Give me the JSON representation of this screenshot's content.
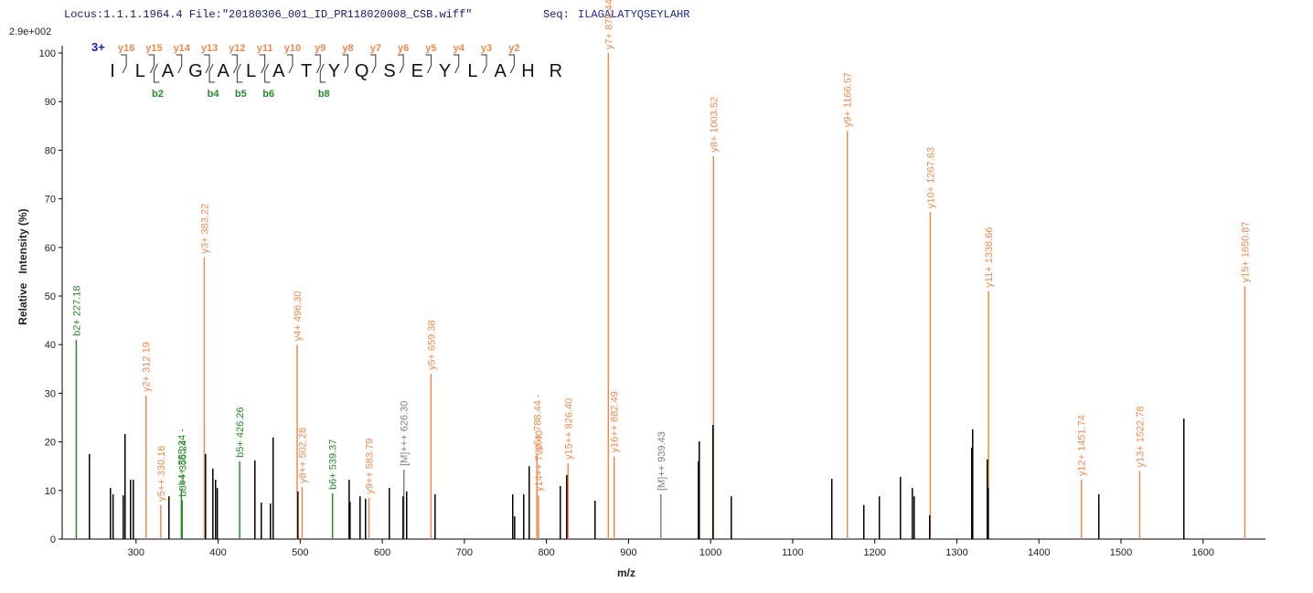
{
  "header": {
    "locus": "Locus:1.1.1.1964.4 File:\"20180306_001_ID_PR118020008_CSB.wiff\"",
    "seq_label": "Seq:",
    "seq": "ILAGALATYQSEYLAHR"
  },
  "chart_data": {
    "type": "spectrum",
    "scale_label": "2.9e+002",
    "x_label": "m/z",
    "y_label": "Relative   Intensity (%)",
    "xlim": [
      210,
      1676
    ],
    "xticks": [
      300,
      400,
      500,
      600,
      700,
      800,
      900,
      1000,
      1100,
      1200,
      1300,
      1400,
      1500,
      1600
    ],
    "ylim": [
      0,
      100
    ],
    "yticks": [
      0,
      10,
      20,
      30,
      40,
      50,
      60,
      70,
      80,
      90,
      100
    ],
    "x": [
      227.18,
      312.19,
      330.16,
      355.24,
      356.24,
      383.22,
      426.26,
      496.3,
      502.28,
      539.37,
      583.79,
      626.3,
      659.38,
      788.44,
      790.4,
      826.4,
      875.44,
      882.49,
      939.43,
      1003.52,
      1166.57,
      1267.63,
      1338.66,
      1451.74,
      1522.78,
      1650.87,
      243.2,
      268.8,
      272,
      284.4,
      286.6,
      293.3,
      296.7,
      340.1,
      384.7,
      393.6,
      396.9,
      399,
      444.8,
      452.6,
      463.7,
      467,
      497.2,
      559.6,
      560.7,
      572.9,
      579.6,
      608.6,
      625.3,
      629.7,
      664.3,
      758.9,
      761.2,
      772.3,
      779,
      816.9,
      824.7,
      859.2,
      985.1,
      986.2,
      1002.9,
      1025.2,
      1147.7,
      1186.7,
      1205.6,
      1231.3,
      1245.8,
      1248,
      1266.9,
      1318.2,
      1319.3,
      1337.1,
      1338.2,
      1473,
      1576.6
    ],
    "values": [
      41,
      29.5,
      7,
      10.3,
      8,
      58,
      16,
      40,
      10.7,
      9.4,
      8.5,
      14.3,
      34,
      17.5,
      9,
      15.6,
      100,
      17,
      9.2,
      78.8,
      84,
      67.3,
      51,
      12.2,
      14,
      52,
      17.5,
      10.5,
      9.2,
      9,
      21.6,
      12.2,
      12.2,
      8.8,
      17.5,
      14.5,
      12.2,
      10.5,
      16.2,
      7.5,
      7.3,
      20.9,
      9.8,
      12.2,
      7.7,
      8.8,
      8.3,
      10.5,
      8.8,
      9.8,
      9.2,
      9.2,
      4.7,
      9.2,
      15,
      10.9,
      13.2,
      7.9,
      16,
      20.1,
      23.5,
      8.8,
      12.4,
      7,
      8.8,
      12.8,
      10.5,
      8.8,
      4.9,
      18.8,
      22.6,
      16.4,
      10.5,
      9.2,
      24.8
    ],
    "colors": [
      "#2a8a2a",
      "#ef8a4f",
      "#ef8a4f",
      "#2a8a2a",
      "#2a8a2a",
      "#ef8a4f",
      "#2a8a2a",
      "#ef8a4f",
      "#ef8a4f",
      "#2a8a2a",
      "#ef8a4f",
      "#808080",
      "#ef8a4f",
      "#ef8a4f",
      "#ef8a4f",
      "#ef8a4f",
      "#ef8a4f",
      "#ef8a4f",
      "#808080",
      "#ef8a4f",
      "#ef8a4f",
      "#ef8a4f",
      "#ef8a4f",
      "#ef8a4f",
      "#ef8a4f",
      "#ef8a4f",
      "#000",
      "#000",
      "#000",
      "#000",
      "#000",
      "#000",
      "#000",
      "#000",
      "#000",
      "#000",
      "#000",
      "#000",
      "#000",
      "#000",
      "#000",
      "#000",
      "#000",
      "#000",
      "#000",
      "#000",
      "#000",
      "#000",
      "#000",
      "#000",
      "#000",
      "#000",
      "#000",
      "#000",
      "#000",
      "#000",
      "#000",
      "#000",
      "#000",
      "#000",
      "#000",
      "#000",
      "#000",
      "#000",
      "#000",
      "#000",
      "#000",
      "#000",
      "#000",
      "#000",
      "#000",
      "#000",
      "#000",
      "#000",
      "#000"
    ],
    "labels": [
      "b2+ 227.18",
      "y2+ 312.19",
      "y5++ 330.16",
      "b4+ 355.24 -",
      "b8++ 356.24",
      "y3+ 383.22",
      "b5+ 426.26",
      "y4+ 496.30",
      "y8++ 502.28",
      "b6+ 539.37",
      "y9++ 583.79",
      "[M]+++ 626.30",
      "y5+ 659.38",
      "y6+ 788.44 -",
      "y14++ 790.40",
      "y15++ 826.40",
      "y7+ 875.44",
      "y16++ 882.49",
      "[M]++ 939.43",
      "y8+ 1003.52",
      "y9+ 1166.57",
      "y10+ 1267.63",
      "y11+ 1338.66",
      "y12+ 1451.74",
      "y13+ 1522.78",
      "y15+ 1650.87",
      null,
      null,
      null,
      null,
      null,
      null,
      null,
      null,
      null,
      null,
      null,
      null,
      null,
      null,
      null,
      null,
      null,
      null,
      null,
      null,
      null,
      null,
      null,
      null,
      null,
      null,
      null,
      null,
      null,
      null,
      null,
      null,
      null,
      null,
      null,
      null,
      null,
      null,
      null,
      null,
      null,
      null,
      null,
      null,
      null,
      null,
      null,
      null,
      null
    ],
    "peptide": {
      "charge": "3+",
      "residues": [
        "I",
        "L",
        "A",
        "G",
        "A",
        "L",
        "A",
        "T",
        "Y",
        "Q",
        "S",
        "E",
        "Y",
        "L",
        "A",
        "H",
        "R"
      ],
      "y_ions": [
        "y16",
        "y15",
        "y14",
        "y13",
        "y12",
        "y11",
        "y10",
        "y9",
        "y8",
        "y7",
        "y6",
        "y5",
        "y4",
        "y3",
        "y2"
      ],
      "b_ions": [
        "b2",
        "b4",
        "b5",
        "b6",
        "b8"
      ]
    }
  }
}
